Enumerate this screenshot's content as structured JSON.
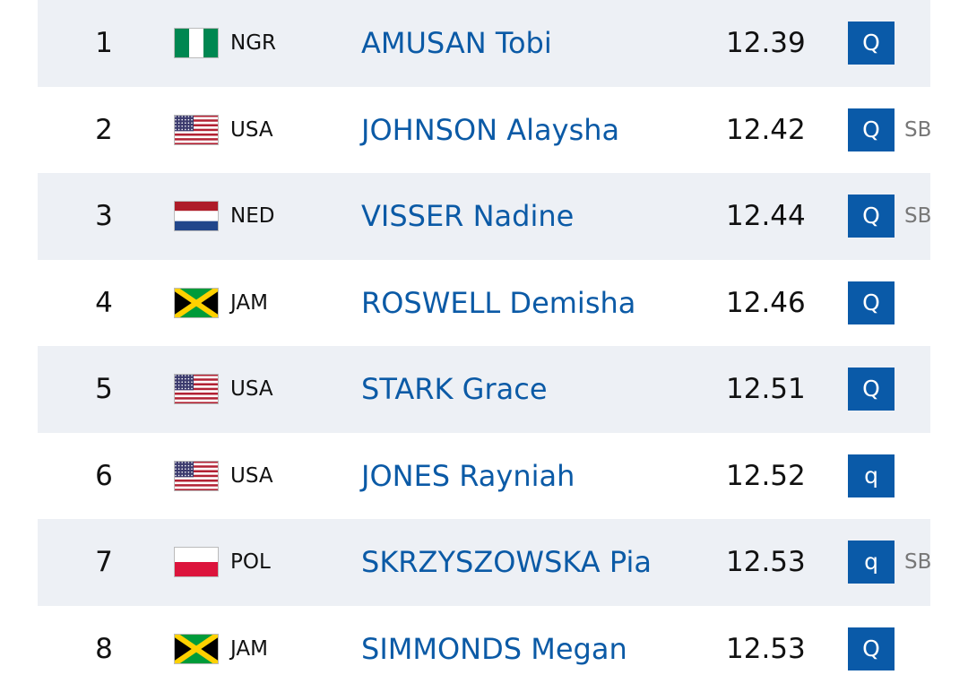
{
  "table": {
    "rows": [
      {
        "rank": 1,
        "country": "NGR",
        "name": "AMUSAN Tobi",
        "time": 12.39,
        "qualifier": "Q"
      },
      {
        "rank": 2,
        "country": "USA",
        "name": "JOHNSON Alaysha",
        "time": 12.42,
        "qualifier": "Q",
        "note": "SB"
      },
      {
        "rank": 3,
        "country": "NED",
        "name": "VISSER Nadine",
        "time": 12.44,
        "qualifier": "Q",
        "note": "SB"
      },
      {
        "rank": 4,
        "country": "JAM",
        "name": "ROSWELL Demisha",
        "time": 12.46,
        "qualifier": "Q"
      },
      {
        "rank": 5,
        "country": "USA",
        "name": "STARK Grace",
        "time": 12.51,
        "qualifier": "Q"
      },
      {
        "rank": 6,
        "country": "USA",
        "name": "JONES Rayniah",
        "time": 12.52,
        "qualifier": "q"
      },
      {
        "rank": 7,
        "country": "POL",
        "name": "SKRZYSZOWSKA Pia",
        "time": 12.53,
        "qualifier": "q",
        "note": "SB"
      },
      {
        "rank": 8,
        "country": "JAM",
        "name": "SIMMONDS Megan",
        "time": 12.53,
        "qualifier": "Q"
      }
    ]
  }
}
